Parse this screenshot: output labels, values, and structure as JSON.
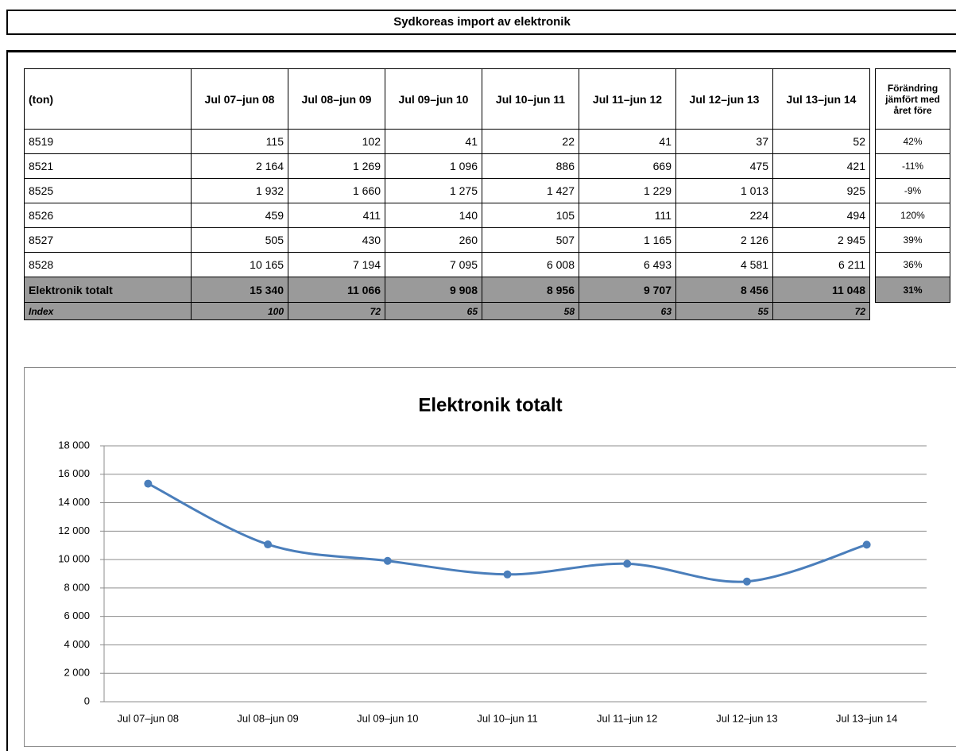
{
  "title": "Sydkoreas import av elektronik",
  "table": {
    "header": [
      "(ton)",
      "Jul 07–jun 08",
      "Jul 08–jun 09",
      "Jul 09–jun 10",
      "Jul 10–jun 11",
      "Jul 11–jun 12",
      "Jul 12–jun 13",
      "Jul 13–jun 14"
    ],
    "rows": [
      [
        "8519",
        "115",
        "102",
        "41",
        "22",
        "41",
        "37",
        "52"
      ],
      [
        "8521",
        "2 164",
        "1 269",
        "1 096",
        "886",
        "669",
        "475",
        "421"
      ],
      [
        "8525",
        "1 932",
        "1 660",
        "1 275",
        "1 427",
        "1 229",
        "1 013",
        "925"
      ],
      [
        "8526",
        "459",
        "411",
        "140",
        "105",
        "111",
        "224",
        "494"
      ],
      [
        "8527",
        "505",
        "430",
        "260",
        "507",
        "1 165",
        "2 126",
        "2 945"
      ],
      [
        "8528",
        "10 165",
        "7 194",
        "7 095",
        "6 008",
        "6 493",
        "4 581",
        "6 211"
      ]
    ],
    "total": [
      "Elektronik totalt",
      "15 340",
      "11 066",
      "9 908",
      "8 956",
      "9 707",
      "8 456",
      "11 048"
    ],
    "index": [
      "Index",
      "100",
      "72",
      "65",
      "58",
      "63",
      "55",
      "72"
    ],
    "change_header": "Förändring jämfört med året före",
    "change": [
      "42%",
      "-11%",
      "-9%",
      "120%",
      "39%",
      "36%"
    ],
    "total_change": "31%"
  },
  "chart_data": {
    "type": "line",
    "title": "Elektronik totalt",
    "categories": [
      "Jul 07–jun 08",
      "Jul 08–jun 09",
      "Jul 09–jun 10",
      "Jul 10–jun 11",
      "Jul 11–jun 12",
      "Jul 12–jun 13",
      "Jul 13–jun 14"
    ],
    "values": [
      15340,
      11066,
      9908,
      8956,
      9707,
      8456,
      11048
    ],
    "color": "#4a7ebb",
    "ylim": [
      0,
      18000
    ],
    "yticks": [
      0,
      {
        "value": 2000,
        "label": "2 000"
      },
      {
        "value": 4000,
        "label": "4 000"
      },
      {
        "value": 6000,
        "label": "6 000"
      },
      {
        "value": 8000,
        "label": "8 000"
      },
      {
        "value": 10000,
        "label": "10 000"
      },
      {
        "value": 12000,
        "label": "12 000"
      },
      {
        "value": 14000,
        "label": "14 000"
      },
      {
        "value": 16000,
        "label": "16 000"
      },
      {
        "value": 18000,
        "label": "18 000"
      }
    ],
    "grid": true
  }
}
